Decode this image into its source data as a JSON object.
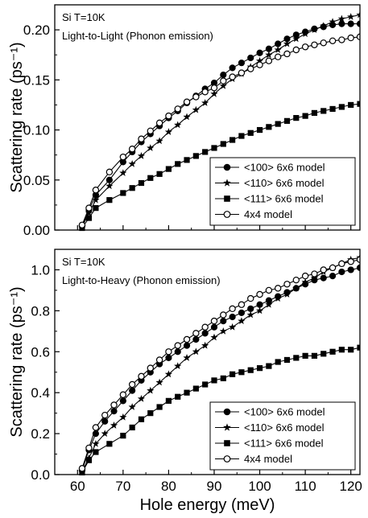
{
  "chart_data": [
    {
      "type": "line",
      "annotations": [
        "Si T=10K",
        "Light-to-Light (Phonon emission)"
      ],
      "xlabel": "",
      "ylabel": "Scattering rate (ps⁻¹)",
      "xlim": [
        55,
        122
      ],
      "ylim": [
        0,
        0.225
      ],
      "yticks": [
        0.0,
        0.05,
        0.1,
        0.15,
        0.2
      ],
      "ytick_labels": [
        "0.00",
        "0.05",
        "0.10",
        "0.15",
        "0.20"
      ],
      "legend_position": "bottom-right",
      "series": [
        {
          "name": "<100> 6x6 model",
          "marker": "circle-filled",
          "points": [
            [
              61,
              0.004
            ],
            [
              62.5,
              0.02
            ],
            [
              64,
              0.035
            ],
            [
              67,
              0.05
            ],
            [
              70,
              0.068
            ],
            [
              72,
              0.078
            ],
            [
              74,
              0.088
            ],
            [
              76,
              0.096
            ],
            [
              78,
              0.104
            ],
            [
              80,
              0.112
            ],
            [
              82,
              0.119
            ],
            [
              84,
              0.127
            ],
            [
              86,
              0.134
            ],
            [
              88,
              0.141
            ],
            [
              90,
              0.147
            ],
            [
              92,
              0.155
            ],
            [
              94,
              0.162
            ],
            [
              96,
              0.167
            ],
            [
              98,
              0.172
            ],
            [
              100,
              0.177
            ],
            [
              102,
              0.181
            ],
            [
              104,
              0.186
            ],
            [
              106,
              0.191
            ],
            [
              108,
              0.195
            ],
            [
              110,
              0.198
            ],
            [
              112,
              0.201
            ],
            [
              114,
              0.203
            ],
            [
              116,
              0.205
            ],
            [
              118,
              0.206
            ],
            [
              120,
              0.206
            ],
            [
              122,
              0.206
            ]
          ]
        },
        {
          "name": "<110> 6x6 model",
          "marker": "star",
          "points": [
            [
              61,
              0.003
            ],
            [
              62.5,
              0.017
            ],
            [
              64,
              0.03
            ],
            [
              67,
              0.044
            ],
            [
              70,
              0.057
            ],
            [
              72,
              0.066
            ],
            [
              74,
              0.074
            ],
            [
              76,
              0.082
            ],
            [
              78,
              0.089
            ],
            [
              80,
              0.098
            ],
            [
              82,
              0.105
            ],
            [
              84,
              0.113
            ],
            [
              86,
              0.12
            ],
            [
              88,
              0.127
            ],
            [
              90,
              0.136
            ],
            [
              92,
              0.144
            ],
            [
              94,
              0.151
            ],
            [
              96,
              0.156
            ],
            [
              98,
              0.163
            ],
            [
              100,
              0.169
            ],
            [
              102,
              0.175
            ],
            [
              104,
              0.18
            ],
            [
              106,
              0.186
            ],
            [
              108,
              0.191
            ],
            [
              110,
              0.196
            ],
            [
              112,
              0.2
            ],
            [
              114,
              0.204
            ],
            [
              116,
              0.208
            ],
            [
              118,
              0.211
            ],
            [
              120,
              0.213
            ],
            [
              122,
              0.215
            ]
          ]
        },
        {
          "name": "<111> 6x6 model",
          "marker": "square-filled",
          "points": [
            [
              61,
              0.002
            ],
            [
              62.5,
              0.012
            ],
            [
              64,
              0.022
            ],
            [
              67,
              0.03
            ],
            [
              70,
              0.037
            ],
            [
              72,
              0.042
            ],
            [
              74,
              0.047
            ],
            [
              76,
              0.052
            ],
            [
              78,
              0.056
            ],
            [
              80,
              0.061
            ],
            [
              82,
              0.066
            ],
            [
              84,
              0.07
            ],
            [
              86,
              0.074
            ],
            [
              88,
              0.078
            ],
            [
              90,
              0.082
            ],
            [
              92,
              0.086
            ],
            [
              94,
              0.09
            ],
            [
              96,
              0.094
            ],
            [
              98,
              0.097
            ],
            [
              100,
              0.1
            ],
            [
              102,
              0.103
            ],
            [
              104,
              0.106
            ],
            [
              106,
              0.109
            ],
            [
              108,
              0.112
            ],
            [
              110,
              0.114
            ],
            [
              112,
              0.117
            ],
            [
              114,
              0.119
            ],
            [
              116,
              0.121
            ],
            [
              118,
              0.123
            ],
            [
              120,
              0.125
            ],
            [
              122,
              0.126
            ]
          ]
        },
        {
          "name": "4x4 model",
          "marker": "circle-open",
          "points": [
            [
              61,
              0.005
            ],
            [
              62.5,
              0.022
            ],
            [
              64,
              0.04
            ],
            [
              67,
              0.058
            ],
            [
              70,
              0.073
            ],
            [
              72,
              0.081
            ],
            [
              74,
              0.091
            ],
            [
              76,
              0.099
            ],
            [
              78,
              0.107
            ],
            [
              80,
              0.114
            ],
            [
              82,
              0.121
            ],
            [
              84,
              0.128
            ],
            [
              86,
              0.133
            ],
            [
              88,
              0.138
            ],
            [
              90,
              0.142
            ],
            [
              92,
              0.149
            ],
            [
              94,
              0.153
            ],
            [
              96,
              0.157
            ],
            [
              98,
              0.161
            ],
            [
              100,
              0.165
            ],
            [
              102,
              0.169
            ],
            [
              104,
              0.173
            ],
            [
              106,
              0.176
            ],
            [
              108,
              0.18
            ],
            [
              110,
              0.183
            ],
            [
              112,
              0.185
            ],
            [
              114,
              0.187
            ],
            [
              116,
              0.189
            ],
            [
              118,
              0.19
            ],
            [
              120,
              0.192
            ],
            [
              122,
              0.193
            ]
          ]
        }
      ]
    },
    {
      "type": "line",
      "annotations": [
        "Si T=10K",
        "Light-to-Heavy (Phonon emission)"
      ],
      "xlabel": "Hole energy (meV)",
      "ylabel": "Scattering rate (ps⁻¹)",
      "xlim": [
        55,
        122
      ],
      "ylim": [
        0,
        1.1
      ],
      "xticks": [
        60,
        70,
        80,
        90,
        100,
        110,
        120
      ],
      "xtick_labels": [
        "60",
        "70",
        "80",
        "90",
        "100",
        "110",
        "120"
      ],
      "yticks": [
        0.0,
        0.2,
        0.4,
        0.6,
        0.8,
        1.0
      ],
      "ytick_labels": [
        "0.0",
        "0.2",
        "0.4",
        "0.6",
        "0.8",
        "1.0"
      ],
      "legend_position": "bottom-right",
      "series": [
        {
          "name": "<100> 6x6 model",
          "marker": "circle-filled",
          "points": [
            [
              61,
              0.02
            ],
            [
              62.5,
              0.12
            ],
            [
              64,
              0.2
            ],
            [
              66,
              0.26
            ],
            [
              68,
              0.31
            ],
            [
              70,
              0.36
            ],
            [
              72,
              0.41
            ],
            [
              74,
              0.46
            ],
            [
              76,
              0.5
            ],
            [
              78,
              0.54
            ],
            [
              80,
              0.57
            ],
            [
              82,
              0.6
            ],
            [
              84,
              0.63
            ],
            [
              86,
              0.66
            ],
            [
              88,
              0.69
            ],
            [
              90,
              0.72
            ],
            [
              92,
              0.75
            ],
            [
              94,
              0.77
            ],
            [
              96,
              0.79
            ],
            [
              98,
              0.81
            ],
            [
              100,
              0.83
            ],
            [
              102,
              0.85
            ],
            [
              104,
              0.87
            ],
            [
              106,
              0.89
            ],
            [
              108,
              0.91
            ],
            [
              110,
              0.93
            ],
            [
              112,
              0.95
            ],
            [
              114,
              0.96
            ],
            [
              116,
              0.97
            ],
            [
              118,
              0.99
            ],
            [
              120,
              1.0
            ],
            [
              122,
              1.01
            ]
          ]
        },
        {
          "name": "<110> 6x6 model",
          "marker": "star",
          "points": [
            [
              61,
              0.015
            ],
            [
              62.5,
              0.08
            ],
            [
              64,
              0.15
            ],
            [
              66,
              0.2
            ],
            [
              68,
              0.24
            ],
            [
              70,
              0.28
            ],
            [
              72,
              0.33
            ],
            [
              74,
              0.37
            ],
            [
              76,
              0.41
            ],
            [
              78,
              0.45
            ],
            [
              80,
              0.49
            ],
            [
              82,
              0.53
            ],
            [
              84,
              0.57
            ],
            [
              86,
              0.6
            ],
            [
              88,
              0.63
            ],
            [
              90,
              0.67
            ],
            [
              92,
              0.7
            ],
            [
              94,
              0.72
            ],
            [
              96,
              0.75
            ],
            [
              98,
              0.78
            ],
            [
              100,
              0.8
            ],
            [
              102,
              0.83
            ],
            [
              104,
              0.86
            ],
            [
              106,
              0.88
            ],
            [
              108,
              0.91
            ],
            [
              110,
              0.94
            ],
            [
              112,
              0.96
            ],
            [
              114,
              0.99
            ],
            [
              116,
              1.01
            ],
            [
              118,
              1.03
            ],
            [
              120,
              1.05
            ],
            [
              122,
              1.06
            ]
          ]
        },
        {
          "name": "<111> 6x6 model",
          "marker": "square-filled",
          "points": [
            [
              61,
              0.01
            ],
            [
              62.5,
              0.07
            ],
            [
              64,
              0.11
            ],
            [
              67,
              0.15
            ],
            [
              70,
              0.19
            ],
            [
              72,
              0.23
            ],
            [
              74,
              0.27
            ],
            [
              76,
              0.3
            ],
            [
              78,
              0.33
            ],
            [
              80,
              0.36
            ],
            [
              82,
              0.38
            ],
            [
              84,
              0.4
            ],
            [
              86,
              0.42
            ],
            [
              88,
              0.44
            ],
            [
              90,
              0.46
            ],
            [
              92,
              0.47
            ],
            [
              94,
              0.49
            ],
            [
              96,
              0.5
            ],
            [
              98,
              0.51
            ],
            [
              100,
              0.52
            ],
            [
              102,
              0.53
            ],
            [
              104,
              0.55
            ],
            [
              106,
              0.56
            ],
            [
              108,
              0.57
            ],
            [
              110,
              0.58
            ],
            [
              112,
              0.58
            ],
            [
              114,
              0.59
            ],
            [
              116,
              0.6
            ],
            [
              118,
              0.61
            ],
            [
              120,
              0.61
            ],
            [
              122,
              0.62
            ]
          ]
        },
        {
          "name": "4x4 model",
          "marker": "circle-open",
          "points": [
            [
              61,
              0.03
            ],
            [
              62.5,
              0.13
            ],
            [
              64,
              0.23
            ],
            [
              66,
              0.29
            ],
            [
              68,
              0.34
            ],
            [
              70,
              0.39
            ],
            [
              72,
              0.44
            ],
            [
              74,
              0.48
            ],
            [
              76,
              0.52
            ],
            [
              78,
              0.56
            ],
            [
              80,
              0.6
            ],
            [
              82,
              0.63
            ],
            [
              84,
              0.66
            ],
            [
              86,
              0.69
            ],
            [
              88,
              0.72
            ],
            [
              90,
              0.75
            ],
            [
              92,
              0.78
            ],
            [
              94,
              0.81
            ],
            [
              96,
              0.83
            ],
            [
              98,
              0.86
            ],
            [
              100,
              0.88
            ],
            [
              102,
              0.9
            ],
            [
              104,
              0.91
            ],
            [
              106,
              0.93
            ],
            [
              108,
              0.95
            ],
            [
              110,
              0.97
            ],
            [
              112,
              0.98
            ],
            [
              114,
              1.0
            ],
            [
              116,
              1.01
            ],
            [
              118,
              1.03
            ],
            [
              120,
              1.04
            ],
            [
              122,
              1.05
            ]
          ]
        }
      ]
    }
  ]
}
